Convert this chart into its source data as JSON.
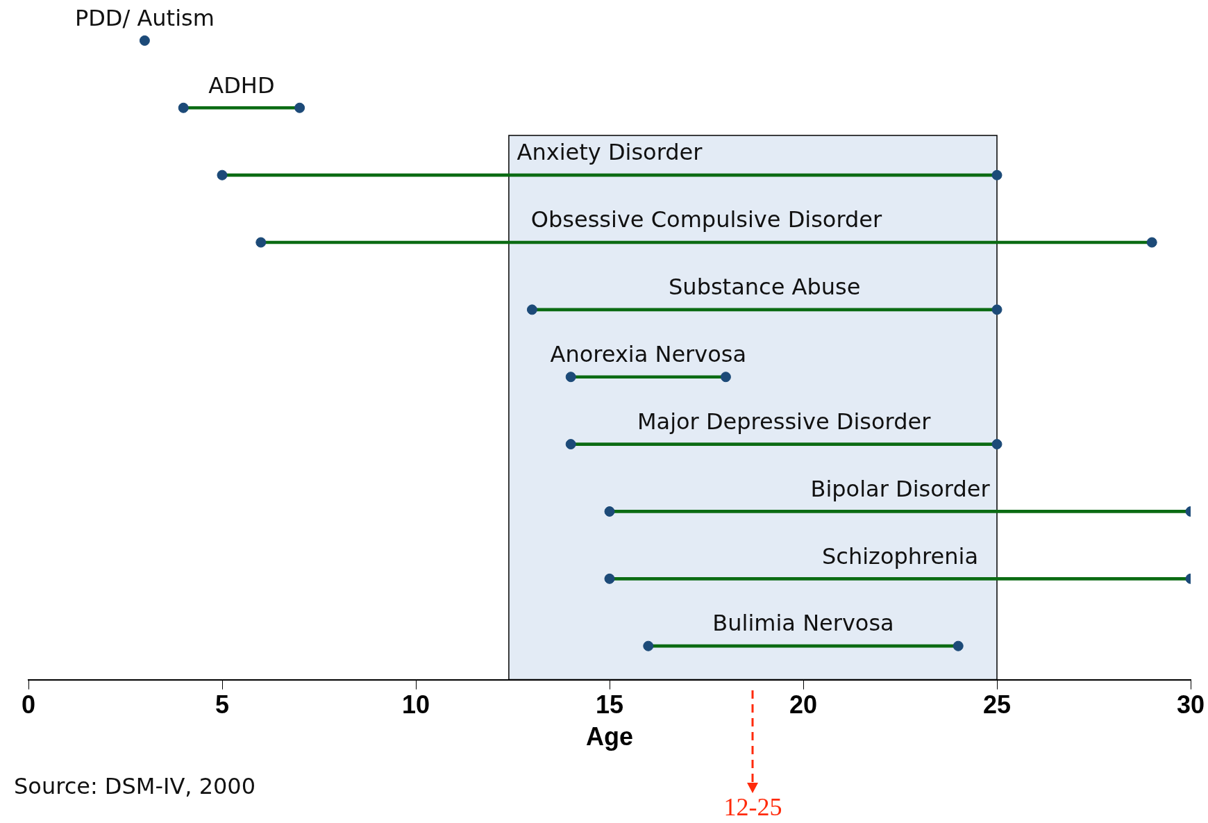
{
  "chart_data": {
    "type": "bar",
    "orientation": "horizontal",
    "xlabel": "Age",
    "categories": [
      "PDD/ Autism",
      "ADHD",
      "Anxiety Disorder",
      "Obsessive Compulsive Disorder",
      "Substance Abuse",
      "Anorexia Nervosa",
      "Major Depressive Disorder",
      "Bipolar Disorder",
      "Schizophrenia",
      "Bulimia Nervosa"
    ],
    "series": [
      {
        "color": "#0b6b13",
        "base": [
          3,
          4,
          5,
          6,
          13,
          14,
          14,
          15,
          15,
          16
        ],
        "values": [
          0,
          3,
          20,
          23,
          12,
          4,
          11,
          15,
          15,
          8
        ]
      },
      {
        "type": "scatter",
        "color": "#1c4a78",
        "values": [
          3,
          4,
          5,
          6,
          13,
          14,
          14,
          15,
          15,
          16
        ]
      },
      {
        "type": "scatter",
        "color": "#1c4a78",
        "values": [
          null,
          7,
          25,
          29,
          25,
          18,
          25,
          30,
          30,
          24
        ]
      }
    ],
    "marker": "circle",
    "xlim": [
      0,
      30
    ],
    "xticks": [
      0,
      5,
      10,
      15,
      20,
      25,
      30
    ],
    "bands": [
      {
        "axis": "x",
        "from": 12.4,
        "to": 25,
        "color": "#e3ebf5"
      }
    ],
    "annotations": [
      "Source: DSM-IV, 2000",
      "12-25"
    ],
    "grid": false,
    "legend": false
  }
}
